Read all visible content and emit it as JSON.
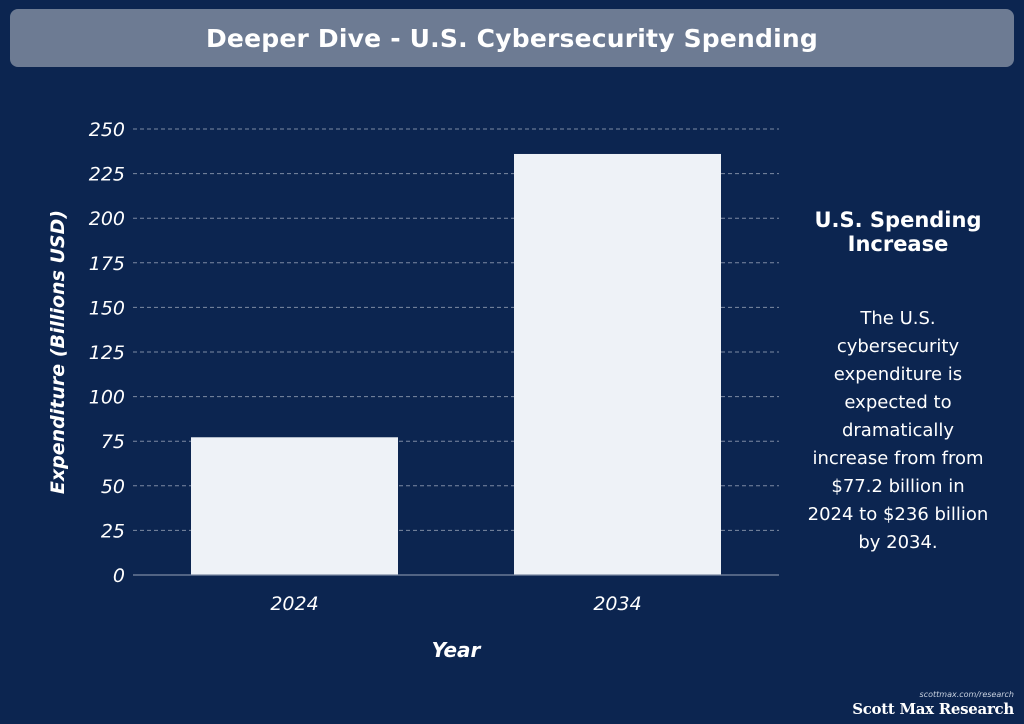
{
  "header": {
    "title": "Deeper Dive - U.S. Cybersecurity Spending"
  },
  "sidebar": {
    "heading": "U.S. Spending Increase",
    "body": "The U.S. cybersecurity expenditure is expected to dramatically increase from from $77.2 billion in 2024 to $236 billion by 2034."
  },
  "brand": {
    "url": "scottmax.com/research",
    "name": "Scott Max Research"
  },
  "colors": {
    "background": "#0c2550",
    "title_bar": "#6d7b93",
    "bar": "#eef2f7",
    "grid": "#7d8aa3",
    "text": "#ffffff"
  },
  "chart_data": {
    "type": "bar",
    "title": "",
    "categories": [
      "2024",
      "2034"
    ],
    "values": [
      77.2,
      236
    ],
    "xlabel": "Year",
    "ylabel": "Expenditure (Billions USD)",
    "ylim": [
      0,
      250
    ],
    "yticks": [
      0,
      25,
      50,
      75,
      100,
      125,
      150,
      175,
      200,
      225,
      250
    ],
    "grid": true,
    "legend": "none"
  }
}
